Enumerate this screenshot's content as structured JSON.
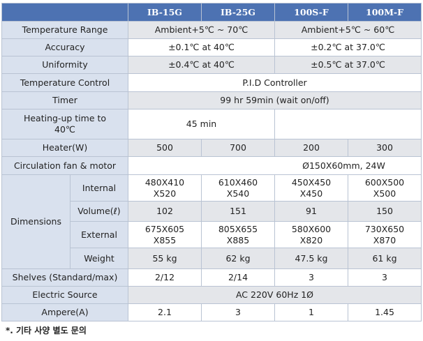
{
  "header": {
    "columns": [
      "IB-15G",
      "IB-25G",
      "100S-F",
      "100M-F"
    ]
  },
  "rows_top": [
    {
      "label": "Temperature  Range",
      "values": [
        "Ambient+5℃  ~ 70℃",
        "Ambient+5℃  ~ 60℃"
      ]
    },
    {
      "label": "Accuracy",
      "values": [
        "±0.1℃  at 40℃",
        "±0.2℃  at 37.0℃"
      ]
    },
    {
      "label": "Uniformity",
      "values": [
        "±0.4℃  at 40℃",
        "±0.5℃  at 37.0℃"
      ]
    },
    {
      "label": "Temperature  Control",
      "values": [
        "P.I.D Controller"
      ]
    },
    {
      "label": "Timer",
      "values": [
        "99 hr 59min  (wait on/off)"
      ]
    },
    {
      "label": "Heating-up time  to\n40℃",
      "values": [
        "45 min"
      ]
    },
    {
      "label": "Heater(W)",
      "values": [
        "500",
        "700",
        "200",
        "300"
      ]
    },
    {
      "label": "Circulation  fan & motor",
      "values": [
        "Ø150X60mm,  24W"
      ]
    }
  ],
  "dimensions": {
    "label": "Dimensions",
    "rows": [
      {
        "label": "Internal",
        "values": [
          "480X410\nX520",
          "610X460\nX540",
          "450X450\nX450",
          "600X500\nX500"
        ]
      },
      {
        "label": "Volume(ℓ)",
        "values": [
          "102",
          "151",
          "91",
          "150"
        ]
      },
      {
        "label": "External",
        "values": [
          "675X605\nX855",
          "805X655\nX885",
          "580X600\nX820",
          "730X650\nX870"
        ]
      },
      {
        "label": "Weight",
        "values": [
          "55 kg",
          "62 kg",
          "47.5 kg",
          "61 kg"
        ]
      }
    ]
  },
  "rows_bottom": [
    {
      "label": "Shelves (Standard/max)",
      "values": [
        "2/12",
        "2/14",
        "3",
        "3"
      ]
    },
    {
      "label": "Electric Source",
      "values": [
        "AC 220V 60Hz 1Ø"
      ]
    },
    {
      "label": "Ampere(A)",
      "values": [
        "2.1",
        "3",
        "1",
        "1.45"
      ]
    }
  ],
  "footnote": "*. 기타 사양 별도 문의"
}
